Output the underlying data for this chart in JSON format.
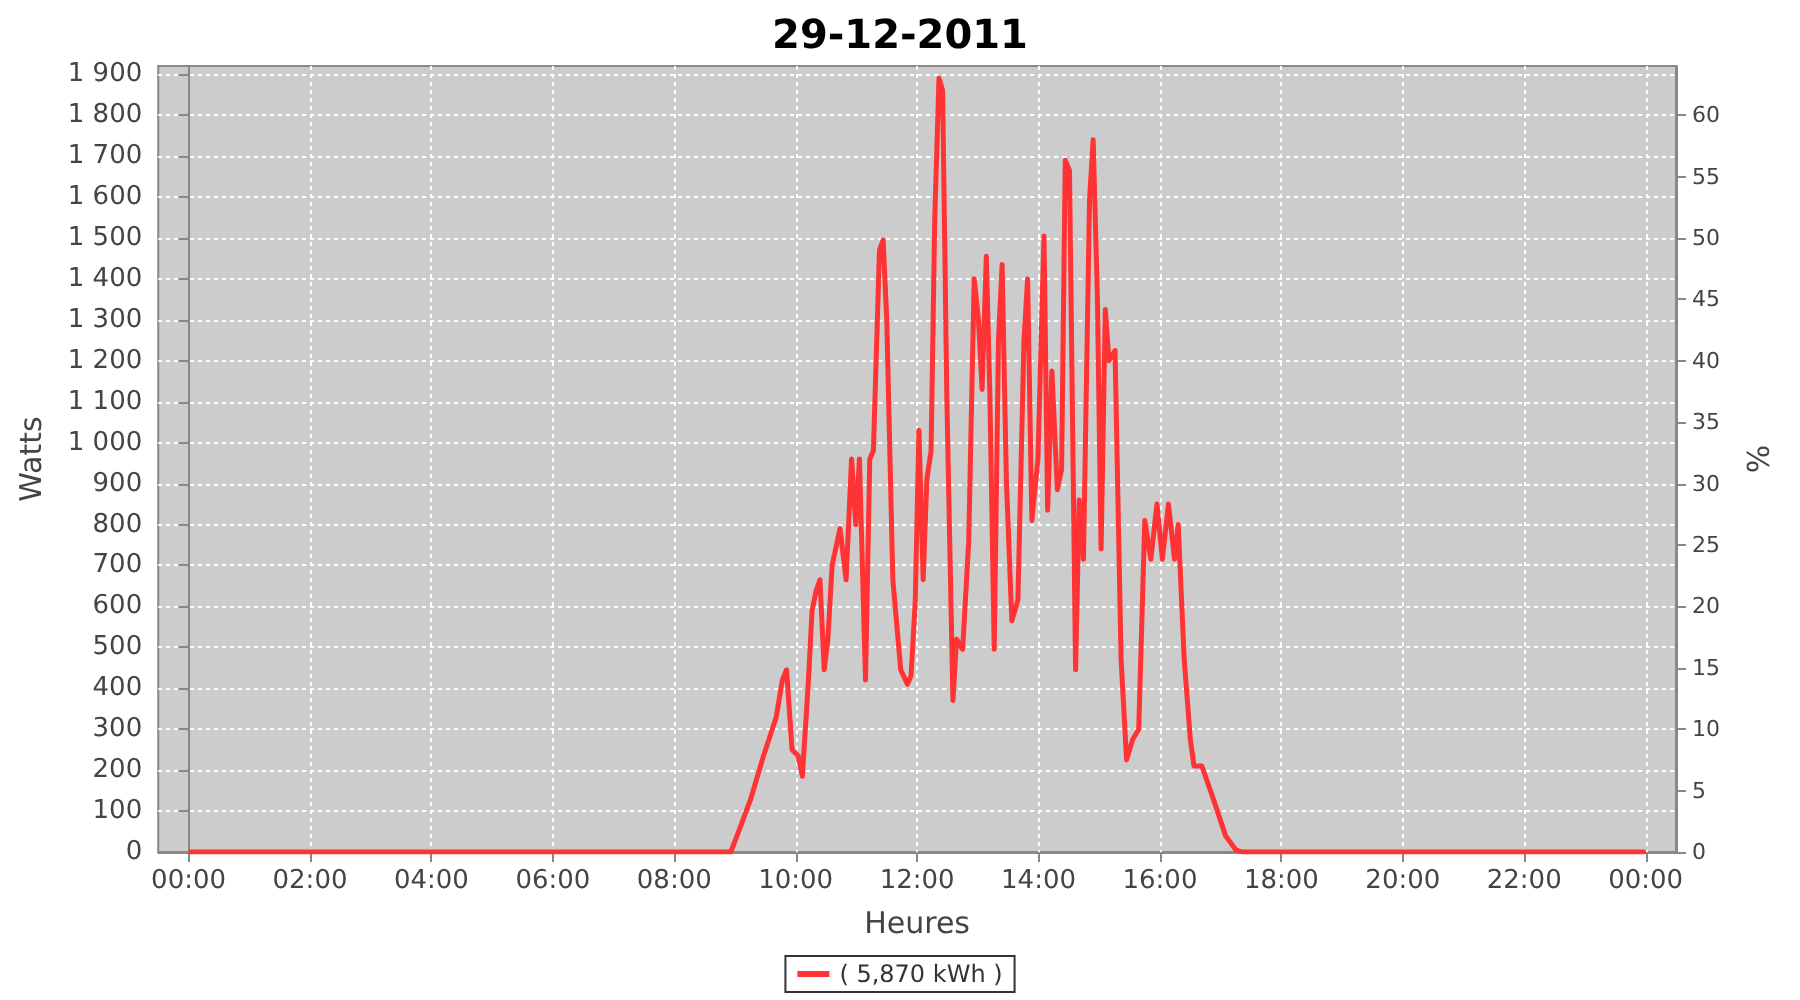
{
  "chart_data": {
    "type": "line",
    "title": "29-12-2011",
    "xlabel": "Heures",
    "ylabel": "Watts",
    "y2label": "%",
    "x": [
      0,
      8.93,
      9.06,
      9.26,
      9.46,
      9.68,
      9.78,
      9.85,
      9.94,
      10.04,
      10.11,
      10.21,
      10.27,
      10.34,
      10.4,
      10.47,
      10.53,
      10.6,
      10.73,
      10.83,
      10.92,
      10.99,
      11.05,
      11.15,
      11.22,
      11.28,
      11.38,
      11.44,
      11.5,
      11.6,
      11.73,
      11.84,
      11.9,
      11.97,
      12.03,
      12.1,
      12.16,
      12.23,
      12.29,
      12.36,
      12.42,
      12.49,
      12.59,
      12.65,
      12.75,
      12.85,
      12.94,
      13.01,
      13.07,
      13.14,
      13.2,
      13.27,
      13.34,
      13.4,
      13.47,
      13.56,
      13.66,
      13.76,
      13.82,
      13.89,
      13.99,
      14.09,
      14.15,
      14.22,
      14.31,
      14.38,
      14.44,
      14.51,
      14.61,
      14.67,
      14.74,
      14.84,
      14.9,
      14.97,
      15.03,
      15.1,
      15.16,
      15.26,
      15.36,
      15.45,
      15.55,
      15.65,
      15.75,
      15.85,
      15.95,
      16.04,
      16.14,
      16.24,
      16.3,
      16.4,
      16.5,
      16.56,
      16.69,
      16.89,
      17.08,
      17.25,
      17.35,
      24
    ],
    "series": [
      {
        "name": "( 5,870 kWh )",
        "color": "#ff3333",
        "values": [
          0,
          0,
          50,
          130,
          230,
          330,
          420,
          445,
          250,
          235,
          185,
          420,
          590,
          640,
          665,
          445,
          520,
          700,
          790,
          665,
          960,
          800,
          960,
          420,
          960,
          980,
          1470,
          1495,
          1300,
          665,
          445,
          410,
          430,
          615,
          1030,
          665,
          910,
          980,
          1545,
          1890,
          1860,
          1105,
          370,
          520,
          495,
          760,
          1400,
          1300,
          1130,
          1455,
          1105,
          495,
          1250,
          1435,
          910,
          565,
          615,
          1250,
          1400,
          810,
          960,
          1505,
          835,
          1175,
          885,
          935,
          1690,
          1665,
          445,
          860,
          715,
          1595,
          1740,
          1350,
          740,
          1325,
          1200,
          1225,
          470,
          225,
          275,
          300,
          810,
          715,
          850,
          715,
          850,
          715,
          800,
          470,
          275,
          210,
          210,
          125,
          40,
          5,
          0,
          0
        ]
      }
    ],
    "xlim": [
      -0.5,
      24.5
    ],
    "xticks": [
      {
        "value": 0,
        "label": "00:00"
      },
      {
        "value": 2,
        "label": "02:00"
      },
      {
        "value": 4,
        "label": "04:00"
      },
      {
        "value": 6,
        "label": "06:00"
      },
      {
        "value": 8,
        "label": "08:00"
      },
      {
        "value": 10,
        "label": "10:00"
      },
      {
        "value": 12,
        "label": "12:00"
      },
      {
        "value": 14,
        "label": "14:00"
      },
      {
        "value": 16,
        "label": "16:00"
      },
      {
        "value": 18,
        "label": "18:00"
      },
      {
        "value": 20,
        "label": "20:00"
      },
      {
        "value": 22,
        "label": "22:00"
      },
      {
        "value": 24,
        "label": "00:00"
      }
    ],
    "ylim": [
      0,
      1920
    ],
    "yticks": [
      0,
      100,
      200,
      300,
      400,
      500,
      600,
      700,
      800,
      900,
      {
        "value": 1000,
        "label": "1 000"
      },
      {
        "value": 1100,
        "label": "1 100"
      },
      {
        "value": 1200,
        "label": "1 200"
      },
      {
        "value": 1300,
        "label": "1 300"
      },
      {
        "value": 1400,
        "label": "1 400"
      },
      {
        "value": 1500,
        "label": "1 500"
      },
      {
        "value": 1600,
        "label": "1 600"
      },
      {
        "value": 1700,
        "label": "1 700"
      },
      {
        "value": 1800,
        "label": "1 800"
      },
      {
        "value": 1900,
        "label": "1 900"
      }
    ],
    "y2lim": [
      0,
      64
    ],
    "y2ticks": [
      0,
      5,
      10,
      15,
      20,
      25,
      30,
      35,
      40,
      45,
      50,
      55,
      60
    ],
    "grid": true,
    "legend": "bottom",
    "marker": "none",
    "line_style": "solid"
  }
}
